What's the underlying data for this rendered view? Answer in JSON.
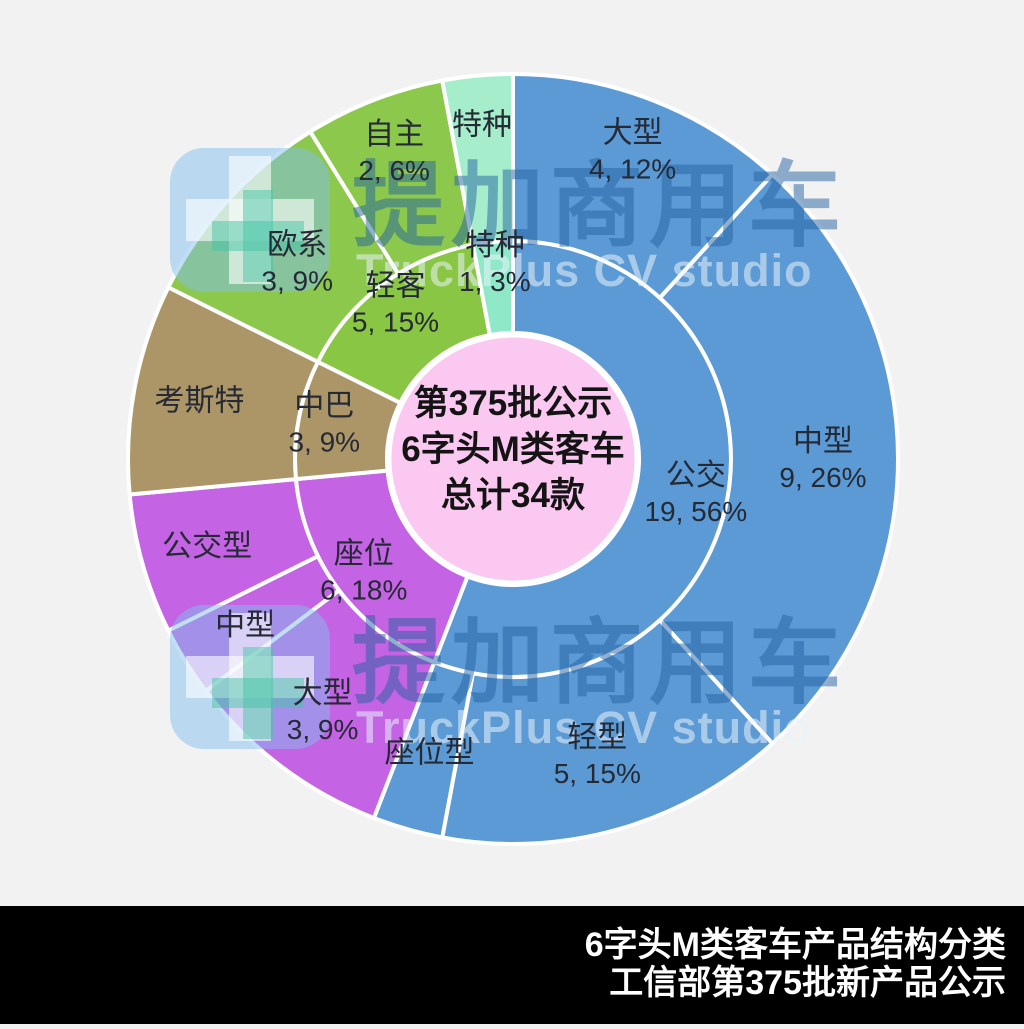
{
  "page": {
    "background": "#F2F2F2"
  },
  "watermark": {
    "brand_cn": "提加商用车",
    "brand_en": "TruckPlus CV studio"
  },
  "footer": {
    "line1": "6字头M类客车产品结构分类",
    "line2": "工信部第375批新产品公示",
    "bg": "#000000",
    "text_color": "#FFFFFF"
  },
  "chart_data": {
    "type": "sunburst",
    "total": 34,
    "center_label": {
      "lines": [
        "第375批公示",
        "6字头M类客车",
        "总计34款"
      ],
      "bg": "#FAC8F0"
    },
    "legend_position": "none",
    "rings": {
      "inner": [
        {
          "name": "公交",
          "value": 19,
          "percent": "56%",
          "value_label": "19, 56%",
          "color": "#5B9AD5"
        },
        {
          "name": "座位",
          "value": 6,
          "percent": "18%",
          "value_label": "6, 18%",
          "color": "#C463E4"
        },
        {
          "name": "中巴",
          "value": 3,
          "percent": "9%",
          "value_label": "3, 9%",
          "color": "#AC9668"
        },
        {
          "name": "轻客",
          "value": 5,
          "percent": "15%",
          "value_label": "5, 15%",
          "color": "#89C644"
        },
        {
          "name": "特种",
          "value": 1,
          "percent": "3%",
          "value_label": "1, 3%",
          "color": "#8FE8C8"
        }
      ],
      "outer": [
        {
          "name": "大型",
          "parent": "公交",
          "value": 4,
          "percent": "12%",
          "value_label": "4, 12%",
          "color": "#5B9AD5"
        },
        {
          "name": "中型",
          "parent": "公交",
          "value": 9,
          "percent": "26%",
          "value_label": "9, 26%",
          "color": "#5B9AD5"
        },
        {
          "name": "轻型",
          "parent": "公交",
          "value": 5,
          "percent": "15%",
          "value_label": "5, 15%",
          "color": "#5B9AD5"
        },
        {
          "name": "座位型",
          "parent": "公交",
          "value": 1,
          "percent": "3%",
          "value_label": null,
          "color": "#5B9AD5"
        },
        {
          "name": "大型",
          "parent": "座位",
          "value": 3,
          "percent": "9%",
          "value_label": "3, 9%",
          "color": "#C463E4"
        },
        {
          "name": "中型",
          "parent": "座位",
          "value": 1,
          "percent": "3%",
          "value_label": null,
          "color": "#C463E4"
        },
        {
          "name": "公交型",
          "parent": "座位",
          "value": 2,
          "percent": "6%",
          "value_label": null,
          "color": "#C463E4"
        },
        {
          "name": "考斯特",
          "parent": "中巴",
          "value": 3,
          "percent": "9%",
          "value_label": null,
          "color": "#AC9668"
        },
        {
          "name": "欧系",
          "parent": "轻客",
          "value": 3,
          "percent": "9%",
          "value_label": "3, 9%",
          "color": "#8CC84C"
        },
        {
          "name": "自主",
          "parent": "轻客",
          "value": 2,
          "percent": "6%",
          "value_label": "2, 6%",
          "color": "#8CC84C"
        },
        {
          "name": "特种",
          "parent": "特种",
          "value": 1,
          "percent": "3%",
          "value_label": null,
          "color": "#A6EECB"
        }
      ]
    }
  }
}
